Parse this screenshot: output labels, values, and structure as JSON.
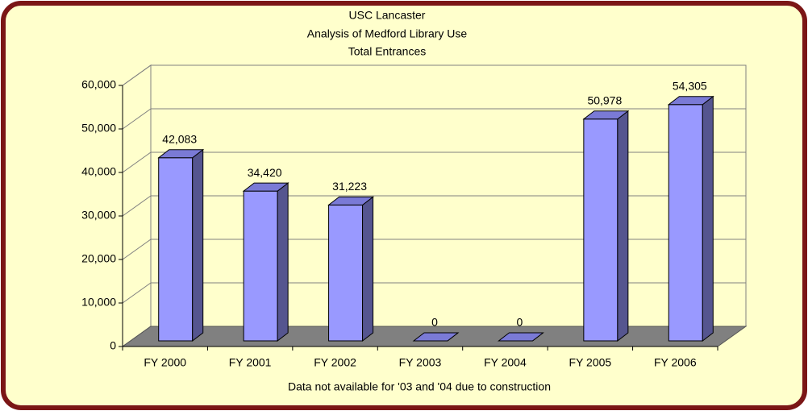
{
  "chart_data": {
    "type": "bar3d",
    "title": [
      "USC Lancaster",
      "Analysis of Medford Library Use",
      "Total Entrances"
    ],
    "xlabel": "Data not available for '03 and '04 due to construction",
    "categories": [
      "FY 2000",
      "FY 2001",
      "FY 2002",
      "FY 2003",
      "FY 2004",
      "FY 2005",
      "FY 2006"
    ],
    "values": [
      42083,
      34420,
      31223,
      0,
      0,
      50978,
      54305
    ],
    "value_labels": [
      "42,083",
      "34,420",
      "31,223",
      "0",
      "0",
      "50,978",
      "54,305"
    ],
    "color": "#9999ff",
    "ylim": [
      0,
      60000
    ],
    "yticks": [
      0,
      {
        "value": 10000,
        "label": "10,000"
      },
      {
        "value": 20000,
        "label": "20,000"
      },
      {
        "value": 30000,
        "label": "30,000"
      },
      {
        "value": 40000,
        "label": "40,000"
      },
      {
        "value": 50000,
        "label": "50,000"
      },
      {
        "value": 60000,
        "label": "60,000"
      }
    ],
    "grid": true
  }
}
